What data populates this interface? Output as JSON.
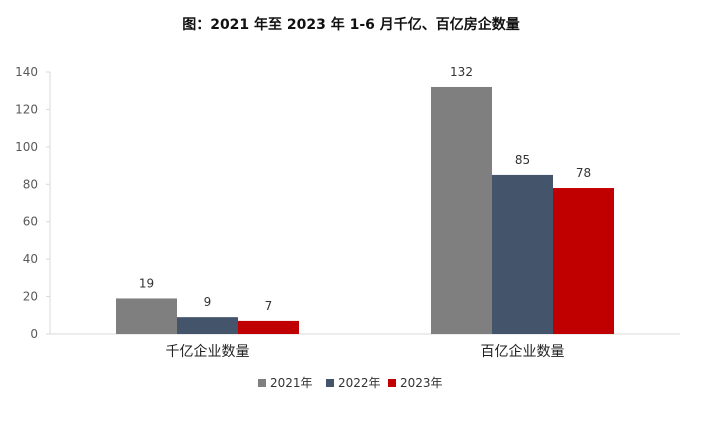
{
  "chart_data": {
    "type": "bar",
    "title": "图：2021 年至 2023 年 1-6 月千亿、百亿房企数量",
    "categories": [
      "千亿企业数量",
      "百亿企业数量"
    ],
    "series": [
      {
        "name": "2021年",
        "values": [
          19,
          132
        ],
        "color": "#7f7f7f"
      },
      {
        "name": "2022年",
        "values": [
          9,
          85
        ],
        "color": "#44546a"
      },
      {
        "name": "2023年",
        "values": [
          7,
          78
        ],
        "color": "#c00000"
      }
    ],
    "ylim": [
      0,
      140
    ],
    "yticks": [
      0,
      20,
      40,
      60,
      80,
      100,
      120,
      140
    ],
    "grid": false,
    "legend": "bottom",
    "xlabel": "",
    "ylabel": ""
  }
}
